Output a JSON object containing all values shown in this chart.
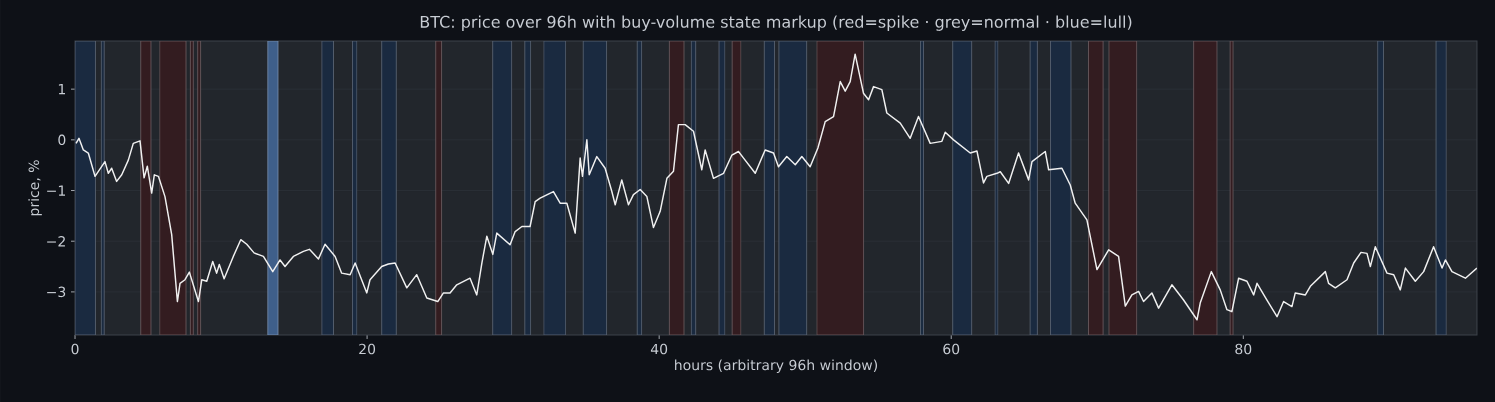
{
  "chart_data": {
    "type": "line",
    "title": "BTC: price over 96h with buy-volume state markup (red=spike · grey=normal · blue=lull)",
    "xlabel": "hours (arbitrary 96h window)",
    "ylabel": "price, %",
    "xlim": [
      0,
      96
    ],
    "ylim": [
      -3.85,
      1.95
    ],
    "xticks": [
      0,
      20,
      40,
      60,
      80
    ],
    "yticks": [
      {
        "value": -3,
        "label": "−3"
      },
      {
        "value": -2,
        "label": "−2"
      },
      {
        "value": -1,
        "label": "−1"
      },
      {
        "value": 0,
        "label": "0"
      },
      {
        "value": 1,
        "label": "1"
      }
    ],
    "grid": "y",
    "series": [
      {
        "color": "#f0f0f0",
        "x": [
          0.07,
          0.27,
          0.57,
          0.91,
          1.37,
          2.05,
          2.28,
          2.51,
          2.85,
          3.2,
          3.65,
          3.99,
          4.45,
          4.73,
          4.95,
          5.25,
          5.43,
          5.71,
          6.16,
          6.62,
          7.01,
          7.19,
          7.53,
          7.83,
          8.45,
          8.68,
          9.02,
          9.43,
          9.7,
          9.88,
          10.21,
          10.84,
          11.35,
          11.76,
          12.26,
          12.9,
          13.54,
          14.04,
          14.38,
          14.95,
          15.64,
          16.05,
          16.67,
          17.12,
          17.81,
          18.26,
          18.84,
          19.18,
          19.98,
          20.2,
          21.0,
          21.46,
          21.92,
          22.72,
          23.4,
          24.09,
          24.84,
          25.23,
          25.68,
          26.14,
          27.05,
          27.51,
          27.86,
          28.2,
          28.61,
          28.88,
          29.79,
          30.14,
          30.6,
          31.16,
          31.51,
          31.85,
          32.76,
          33.22,
          33.68,
          34.25,
          34.59,
          34.75,
          35.05,
          35.21,
          35.73,
          36.3,
          36.76,
          36.99,
          37.44,
          37.9,
          38.24,
          38.7,
          39.16,
          39.61,
          40.07,
          40.53,
          40.98,
          41.32,
          41.78,
          42.35,
          42.92,
          43.15,
          43.72,
          44.41,
          44.98,
          45.43,
          45.78,
          46.58,
          47.26,
          47.83,
          48.17,
          48.74,
          49.32,
          49.77,
          50.34,
          50.87,
          51.37,
          51.94,
          52.4,
          52.74,
          53.08,
          53.42,
          53.99,
          54.34,
          54.68,
          55.25,
          55.59,
          56.51,
          57.19,
          57.76,
          58.56,
          59.36,
          59.59,
          60.16,
          61.3,
          61.76,
          62.21,
          62.44,
          63.13,
          63.36,
          63.93,
          64.61,
          65.3,
          65.53,
          66.44,
          66.67,
          67.58,
          68.15,
          68.49,
          69.29,
          69.98,
          70.78,
          71.46,
          71.92,
          72.37,
          72.83,
          73.17,
          73.74,
          74.2,
          75.11,
          75.91,
          76.83,
          77.05,
          77.81,
          78.42,
          78.88,
          79.22,
          79.68,
          80.25,
          80.71,
          80.94,
          81.62,
          82.31,
          82.76,
          83.33,
          83.56,
          84.25,
          84.59,
          85.62,
          85.84,
          86.3,
          87.1,
          87.56,
          88.06,
          88.47,
          88.7,
          89.04,
          89.84,
          90.3,
          90.75,
          91.1,
          91.78,
          92.35,
          93.03,
          93.61,
          93.84,
          94.29,
          95.21,
          96.0
        ],
        "values": [
          -0.07,
          0.03,
          -0.2,
          -0.26,
          -0.72,
          -0.43,
          -0.66,
          -0.56,
          -0.82,
          -0.69,
          -0.4,
          -0.07,
          -0.02,
          -0.75,
          -0.52,
          -1.05,
          -0.69,
          -0.72,
          -1.12,
          -1.87,
          -3.19,
          -2.83,
          -2.76,
          -2.61,
          -3.19,
          -2.76,
          -2.79,
          -2.4,
          -2.63,
          -2.46,
          -2.74,
          -2.3,
          -1.97,
          -2.06,
          -2.23,
          -2.3,
          -2.6,
          -2.37,
          -2.5,
          -2.3,
          -2.2,
          -2.16,
          -2.35,
          -2.06,
          -2.3,
          -2.63,
          -2.66,
          -2.43,
          -3.02,
          -2.76,
          -2.5,
          -2.45,
          -2.43,
          -2.92,
          -2.66,
          -3.12,
          -3.19,
          -3.02,
          -3.02,
          -2.86,
          -2.73,
          -3.06,
          -2.43,
          -1.9,
          -2.26,
          -1.84,
          -2.07,
          -1.81,
          -1.71,
          -1.71,
          -1.22,
          -1.15,
          -1.02,
          -1.25,
          -1.25,
          -1.84,
          -0.36,
          -0.72,
          0.0,
          -0.69,
          -0.33,
          -0.56,
          -1.02,
          -1.28,
          -0.79,
          -1.28,
          -1.08,
          -0.98,
          -1.12,
          -1.73,
          -1.41,
          -0.76,
          -0.62,
          0.3,
          0.3,
          0.17,
          -0.59,
          -0.2,
          -0.76,
          -0.66,
          -0.3,
          -0.23,
          -0.36,
          -0.66,
          -0.2,
          -0.26,
          -0.53,
          -0.33,
          -0.49,
          -0.33,
          -0.53,
          -0.16,
          0.36,
          0.46,
          1.15,
          0.96,
          1.15,
          1.69,
          0.92,
          0.79,
          1.05,
          0.99,
          0.53,
          0.33,
          0.03,
          0.46,
          -0.07,
          -0.03,
          0.15,
          0.0,
          -0.26,
          -0.22,
          -0.85,
          -0.72,
          -0.66,
          -0.63,
          -0.86,
          -0.26,
          -0.79,
          -0.43,
          -0.23,
          -0.59,
          -0.56,
          -0.89,
          -1.25,
          -1.58,
          -2.56,
          -2.17,
          -2.3,
          -3.28,
          -3.06,
          -2.99,
          -3.19,
          -3.02,
          -3.32,
          -2.86,
          -3.16,
          -3.55,
          -3.22,
          -2.6,
          -2.96,
          -3.35,
          -3.39,
          -2.73,
          -2.79,
          -3.06,
          -2.83,
          -3.16,
          -3.49,
          -3.19,
          -3.29,
          -3.02,
          -3.06,
          -2.89,
          -2.6,
          -2.83,
          -2.92,
          -2.76,
          -2.43,
          -2.22,
          -2.24,
          -2.5,
          -2.11,
          -2.63,
          -2.66,
          -2.96,
          -2.53,
          -2.79,
          -2.6,
          -2.11,
          -2.53,
          -2.37,
          -2.6,
          -2.73,
          -2.53
        ]
      }
    ],
    "bands": [
      {
        "axis": "x",
        "from": 0,
        "to": 1.4,
        "color": "#1a2a40"
      },
      {
        "axis": "x",
        "from": 1.8,
        "to": 2.0,
        "color": "#1a2a40"
      },
      {
        "axis": "x",
        "from": 4.5,
        "to": 5.2,
        "color": "#331c20"
      },
      {
        "axis": "x",
        "from": 5.8,
        "to": 7.6,
        "color": "#331c20"
      },
      {
        "axis": "x",
        "from": 7.9,
        "to": 8.1,
        "color": "#331c20"
      },
      {
        "axis": "x",
        "from": 8.4,
        "to": 8.6,
        "color": "#331c20"
      },
      {
        "axis": "x",
        "from": 13.2,
        "to": 13.9,
        "color": "#3f5f8a"
      },
      {
        "axis": "x",
        "from": 16.9,
        "to": 17.7,
        "color": "#1a2a40"
      },
      {
        "axis": "x",
        "from": 19.0,
        "to": 19.3,
        "color": "#1a2a40"
      },
      {
        "axis": "x",
        "from": 21.0,
        "to": 22.0,
        "color": "#1a2a40"
      },
      {
        "axis": "x",
        "from": 24.7,
        "to": 25.1,
        "color": "#331c20"
      },
      {
        "axis": "x",
        "from": 28.6,
        "to": 29.9,
        "color": "#1a2a40"
      },
      {
        "axis": "x",
        "from": 30.8,
        "to": 31.2,
        "color": "#1a2a40"
      },
      {
        "axis": "x",
        "from": 32.1,
        "to": 33.6,
        "color": "#1a2a40"
      },
      {
        "axis": "x",
        "from": 34.8,
        "to": 36.4,
        "color": "#1a2a40"
      },
      {
        "axis": "x",
        "from": 38.5,
        "to": 38.8,
        "color": "#1a2a40"
      },
      {
        "axis": "x",
        "from": 40.7,
        "to": 41.7,
        "color": "#331c20"
      },
      {
        "axis": "x",
        "from": 42.2,
        "to": 42.5,
        "color": "#1a2a40"
      },
      {
        "axis": "x",
        "from": 44.1,
        "to": 44.5,
        "color": "#1a2a40"
      },
      {
        "axis": "x",
        "from": 45.0,
        "to": 45.6,
        "color": "#331c20"
      },
      {
        "axis": "x",
        "from": 47.2,
        "to": 47.9,
        "color": "#1a2a40"
      },
      {
        "axis": "x",
        "from": 48.2,
        "to": 50.1,
        "color": "#1a2a40"
      },
      {
        "axis": "x",
        "from": 50.8,
        "to": 54.0,
        "color": "#331c20"
      },
      {
        "axis": "x",
        "from": 57.9,
        "to": 58.1,
        "color": "#1a2a40"
      },
      {
        "axis": "x",
        "from": 60.1,
        "to": 61.4,
        "color": "#1a2a40"
      },
      {
        "axis": "x",
        "from": 63.0,
        "to": 63.2,
        "color": "#1a2a40"
      },
      {
        "axis": "x",
        "from": 65.4,
        "to": 65.9,
        "color": "#1a2a40"
      },
      {
        "axis": "x",
        "from": 66.8,
        "to": 68.2,
        "color": "#1a2a40"
      },
      {
        "axis": "x",
        "from": 69.4,
        "to": 70.4,
        "color": "#331c20"
      },
      {
        "axis": "x",
        "from": 70.8,
        "to": 72.7,
        "color": "#331c20"
      },
      {
        "axis": "x",
        "from": 76.6,
        "to": 78.2,
        "color": "#331c20"
      },
      {
        "axis": "x",
        "from": 79.1,
        "to": 79.3,
        "color": "#331c20"
      },
      {
        "axis": "x",
        "from": 89.2,
        "to": 89.6,
        "color": "#1a2a40"
      },
      {
        "axis": "x",
        "from": 93.2,
        "to": 93.9,
        "color": "#1a2a40"
      }
    ]
  }
}
